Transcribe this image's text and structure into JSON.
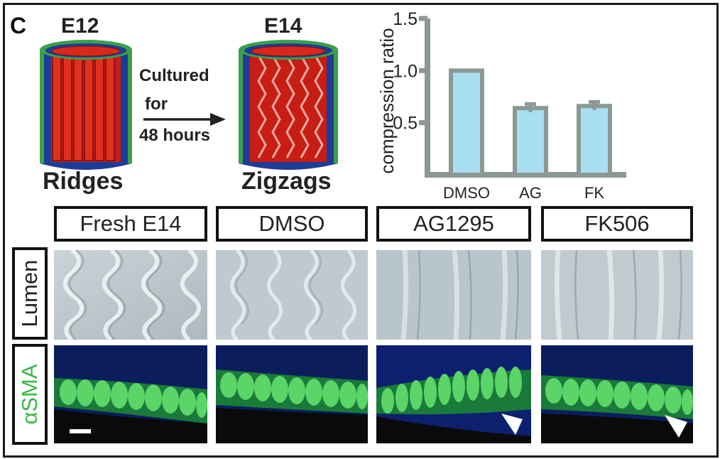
{
  "panel_letter": "C",
  "schematic": {
    "left_stage": "E12",
    "right_stage": "E14",
    "left_pattern": "Ridges",
    "right_pattern": "Zigzags",
    "culture_lines": [
      "Cultured",
      "for",
      "48 hours"
    ]
  },
  "conditions": [
    "Fresh E14",
    "DMSO",
    "AG1295",
    "FK506"
  ],
  "rows": [
    "Lumen",
    "αSMA"
  ],
  "colors": {
    "muscle_red": "#d8281c",
    "epithelium_blue": "#1e3c96",
    "mesenchyme_green": "#3aa04a",
    "bar_fill": "#a8dff0",
    "bar_edge": "#8c9894",
    "asma_text": "#3db54a"
  },
  "chart_data": {
    "type": "bar",
    "categories": [
      "DMSO",
      "AG",
      "FK"
    ],
    "values": [
      1.0,
      0.64,
      0.66
    ],
    "errors": [
      0,
      0.04,
      0.04
    ],
    "ylabel": "compression ratio",
    "yticks": [
      0.5,
      1.0,
      1.5
    ],
    "ylim": [
      0,
      1.5
    ]
  }
}
